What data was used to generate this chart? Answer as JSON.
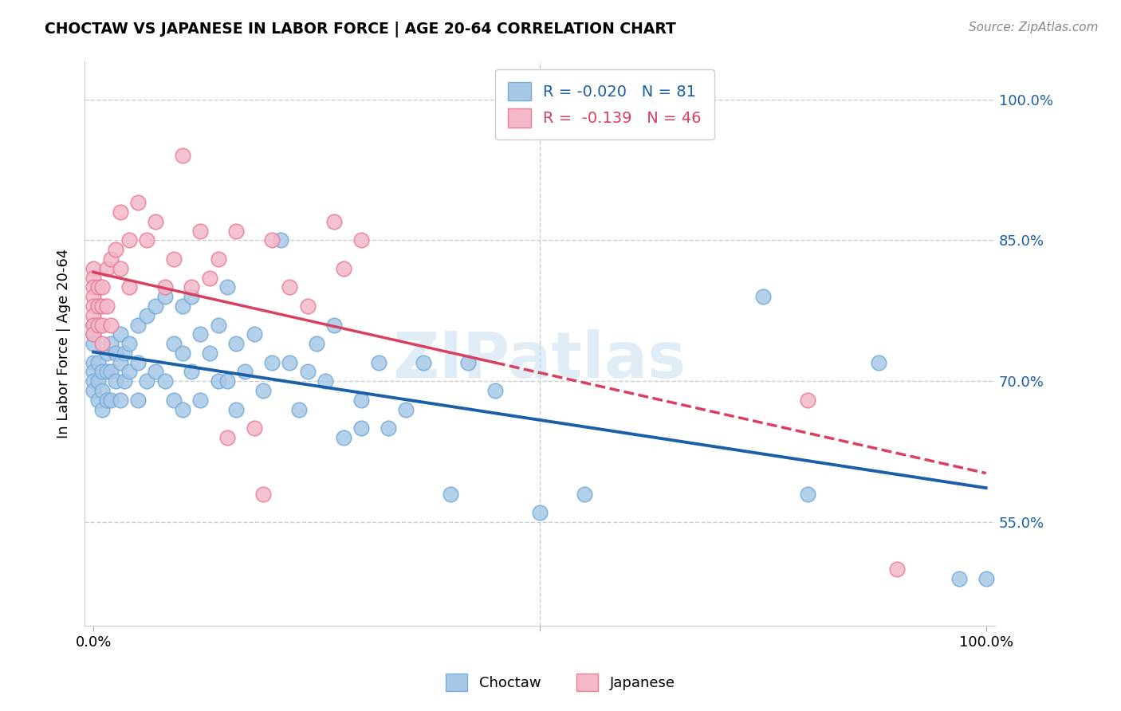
{
  "title": "CHOCTAW VS JAPANESE IN LABOR FORCE | AGE 20-64 CORRELATION CHART",
  "source": "Source: ZipAtlas.com",
  "ylabel": "In Labor Force | Age 20-64",
  "xlim": [
    -0.01,
    1.01
  ],
  "ylim": [
    0.44,
    1.04
  ],
  "ytick_labels_right": [
    "100.0%",
    "85.0%",
    "70.0%",
    "55.0%"
  ],
  "ytick_positions_right": [
    1.0,
    0.85,
    0.7,
    0.55
  ],
  "choctaw_color": "#a8c8e8",
  "japanese_color": "#f4b8c8",
  "choctaw_edge_color": "#7aaed6",
  "japanese_edge_color": "#e8809a",
  "choctaw_line_color": "#1a5fa8",
  "japanese_line_color": "#d94060",
  "choctaw_R": -0.02,
  "choctaw_N": 81,
  "japanese_R": -0.139,
  "japanese_N": 46,
  "choctaw_x": [
    0.0,
    0.0,
    0.0,
    0.0,
    0.0,
    0.0,
    0.0,
    0.005,
    0.005,
    0.005,
    0.01,
    0.01,
    0.01,
    0.015,
    0.015,
    0.015,
    0.02,
    0.02,
    0.02,
    0.025,
    0.025,
    0.03,
    0.03,
    0.03,
    0.035,
    0.035,
    0.04,
    0.04,
    0.05,
    0.05,
    0.05,
    0.06,
    0.06,
    0.07,
    0.07,
    0.08,
    0.08,
    0.09,
    0.09,
    0.1,
    0.1,
    0.1,
    0.11,
    0.11,
    0.12,
    0.12,
    0.13,
    0.14,
    0.14,
    0.15,
    0.15,
    0.16,
    0.16,
    0.17,
    0.18,
    0.19,
    0.2,
    0.21,
    0.22,
    0.23,
    0.24,
    0.25,
    0.26,
    0.27,
    0.28,
    0.3,
    0.3,
    0.32,
    0.33,
    0.35,
    0.37,
    0.4,
    0.42,
    0.45,
    0.5,
    0.55,
    0.75,
    0.8,
    0.88,
    0.97,
    1.0
  ],
  "choctaw_y": [
    0.76,
    0.75,
    0.74,
    0.72,
    0.71,
    0.7,
    0.69,
    0.72,
    0.7,
    0.68,
    0.71,
    0.69,
    0.67,
    0.73,
    0.71,
    0.68,
    0.74,
    0.71,
    0.68,
    0.73,
    0.7,
    0.75,
    0.72,
    0.68,
    0.73,
    0.7,
    0.74,
    0.71,
    0.76,
    0.72,
    0.68,
    0.77,
    0.7,
    0.78,
    0.71,
    0.79,
    0.7,
    0.74,
    0.68,
    0.78,
    0.73,
    0.67,
    0.79,
    0.71,
    0.75,
    0.68,
    0.73,
    0.76,
    0.7,
    0.8,
    0.7,
    0.74,
    0.67,
    0.71,
    0.75,
    0.69,
    0.72,
    0.85,
    0.72,
    0.67,
    0.71,
    0.74,
    0.7,
    0.76,
    0.64,
    0.68,
    0.65,
    0.72,
    0.65,
    0.67,
    0.72,
    0.58,
    0.72,
    0.69,
    0.56,
    0.58,
    0.79,
    0.58,
    0.72,
    0.49,
    0.49
  ],
  "japanese_x": [
    0.0,
    0.0,
    0.0,
    0.0,
    0.0,
    0.0,
    0.0,
    0.0,
    0.005,
    0.005,
    0.005,
    0.01,
    0.01,
    0.01,
    0.01,
    0.015,
    0.015,
    0.02,
    0.02,
    0.025,
    0.03,
    0.03,
    0.04,
    0.04,
    0.05,
    0.06,
    0.07,
    0.08,
    0.09,
    0.1,
    0.11,
    0.12,
    0.13,
    0.14,
    0.15,
    0.16,
    0.18,
    0.19,
    0.2,
    0.22,
    0.24,
    0.27,
    0.28,
    0.3,
    0.8,
    0.9
  ],
  "japanese_y": [
    0.82,
    0.81,
    0.8,
    0.79,
    0.78,
    0.77,
    0.76,
    0.75,
    0.8,
    0.78,
    0.76,
    0.8,
    0.78,
    0.76,
    0.74,
    0.82,
    0.78,
    0.83,
    0.76,
    0.84,
    0.88,
    0.82,
    0.85,
    0.8,
    0.89,
    0.85,
    0.87,
    0.8,
    0.83,
    0.94,
    0.8,
    0.86,
    0.81,
    0.83,
    0.64,
    0.86,
    0.65,
    0.58,
    0.85,
    0.8,
    0.78,
    0.87,
    0.82,
    0.85,
    0.68,
    0.5
  ],
  "watermark": "ZIPatlas",
  "background_color": "#ffffff",
  "grid_color": "#cccccc"
}
